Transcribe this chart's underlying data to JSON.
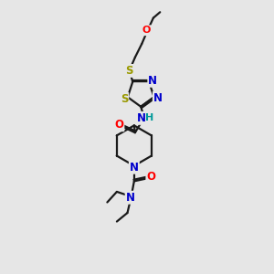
{
  "bg_color": "#e6e6e6",
  "bond_color": "#1a1a1a",
  "atom_colors": {
    "O": "#ff0000",
    "N": "#0000cc",
    "S": "#999900",
    "H": "#009999",
    "C": "#1a1a1a"
  },
  "figsize": [
    3.0,
    3.0
  ],
  "dpi": 100,
  "xlim": [
    0,
    10
  ],
  "ylim": [
    0,
    14
  ]
}
